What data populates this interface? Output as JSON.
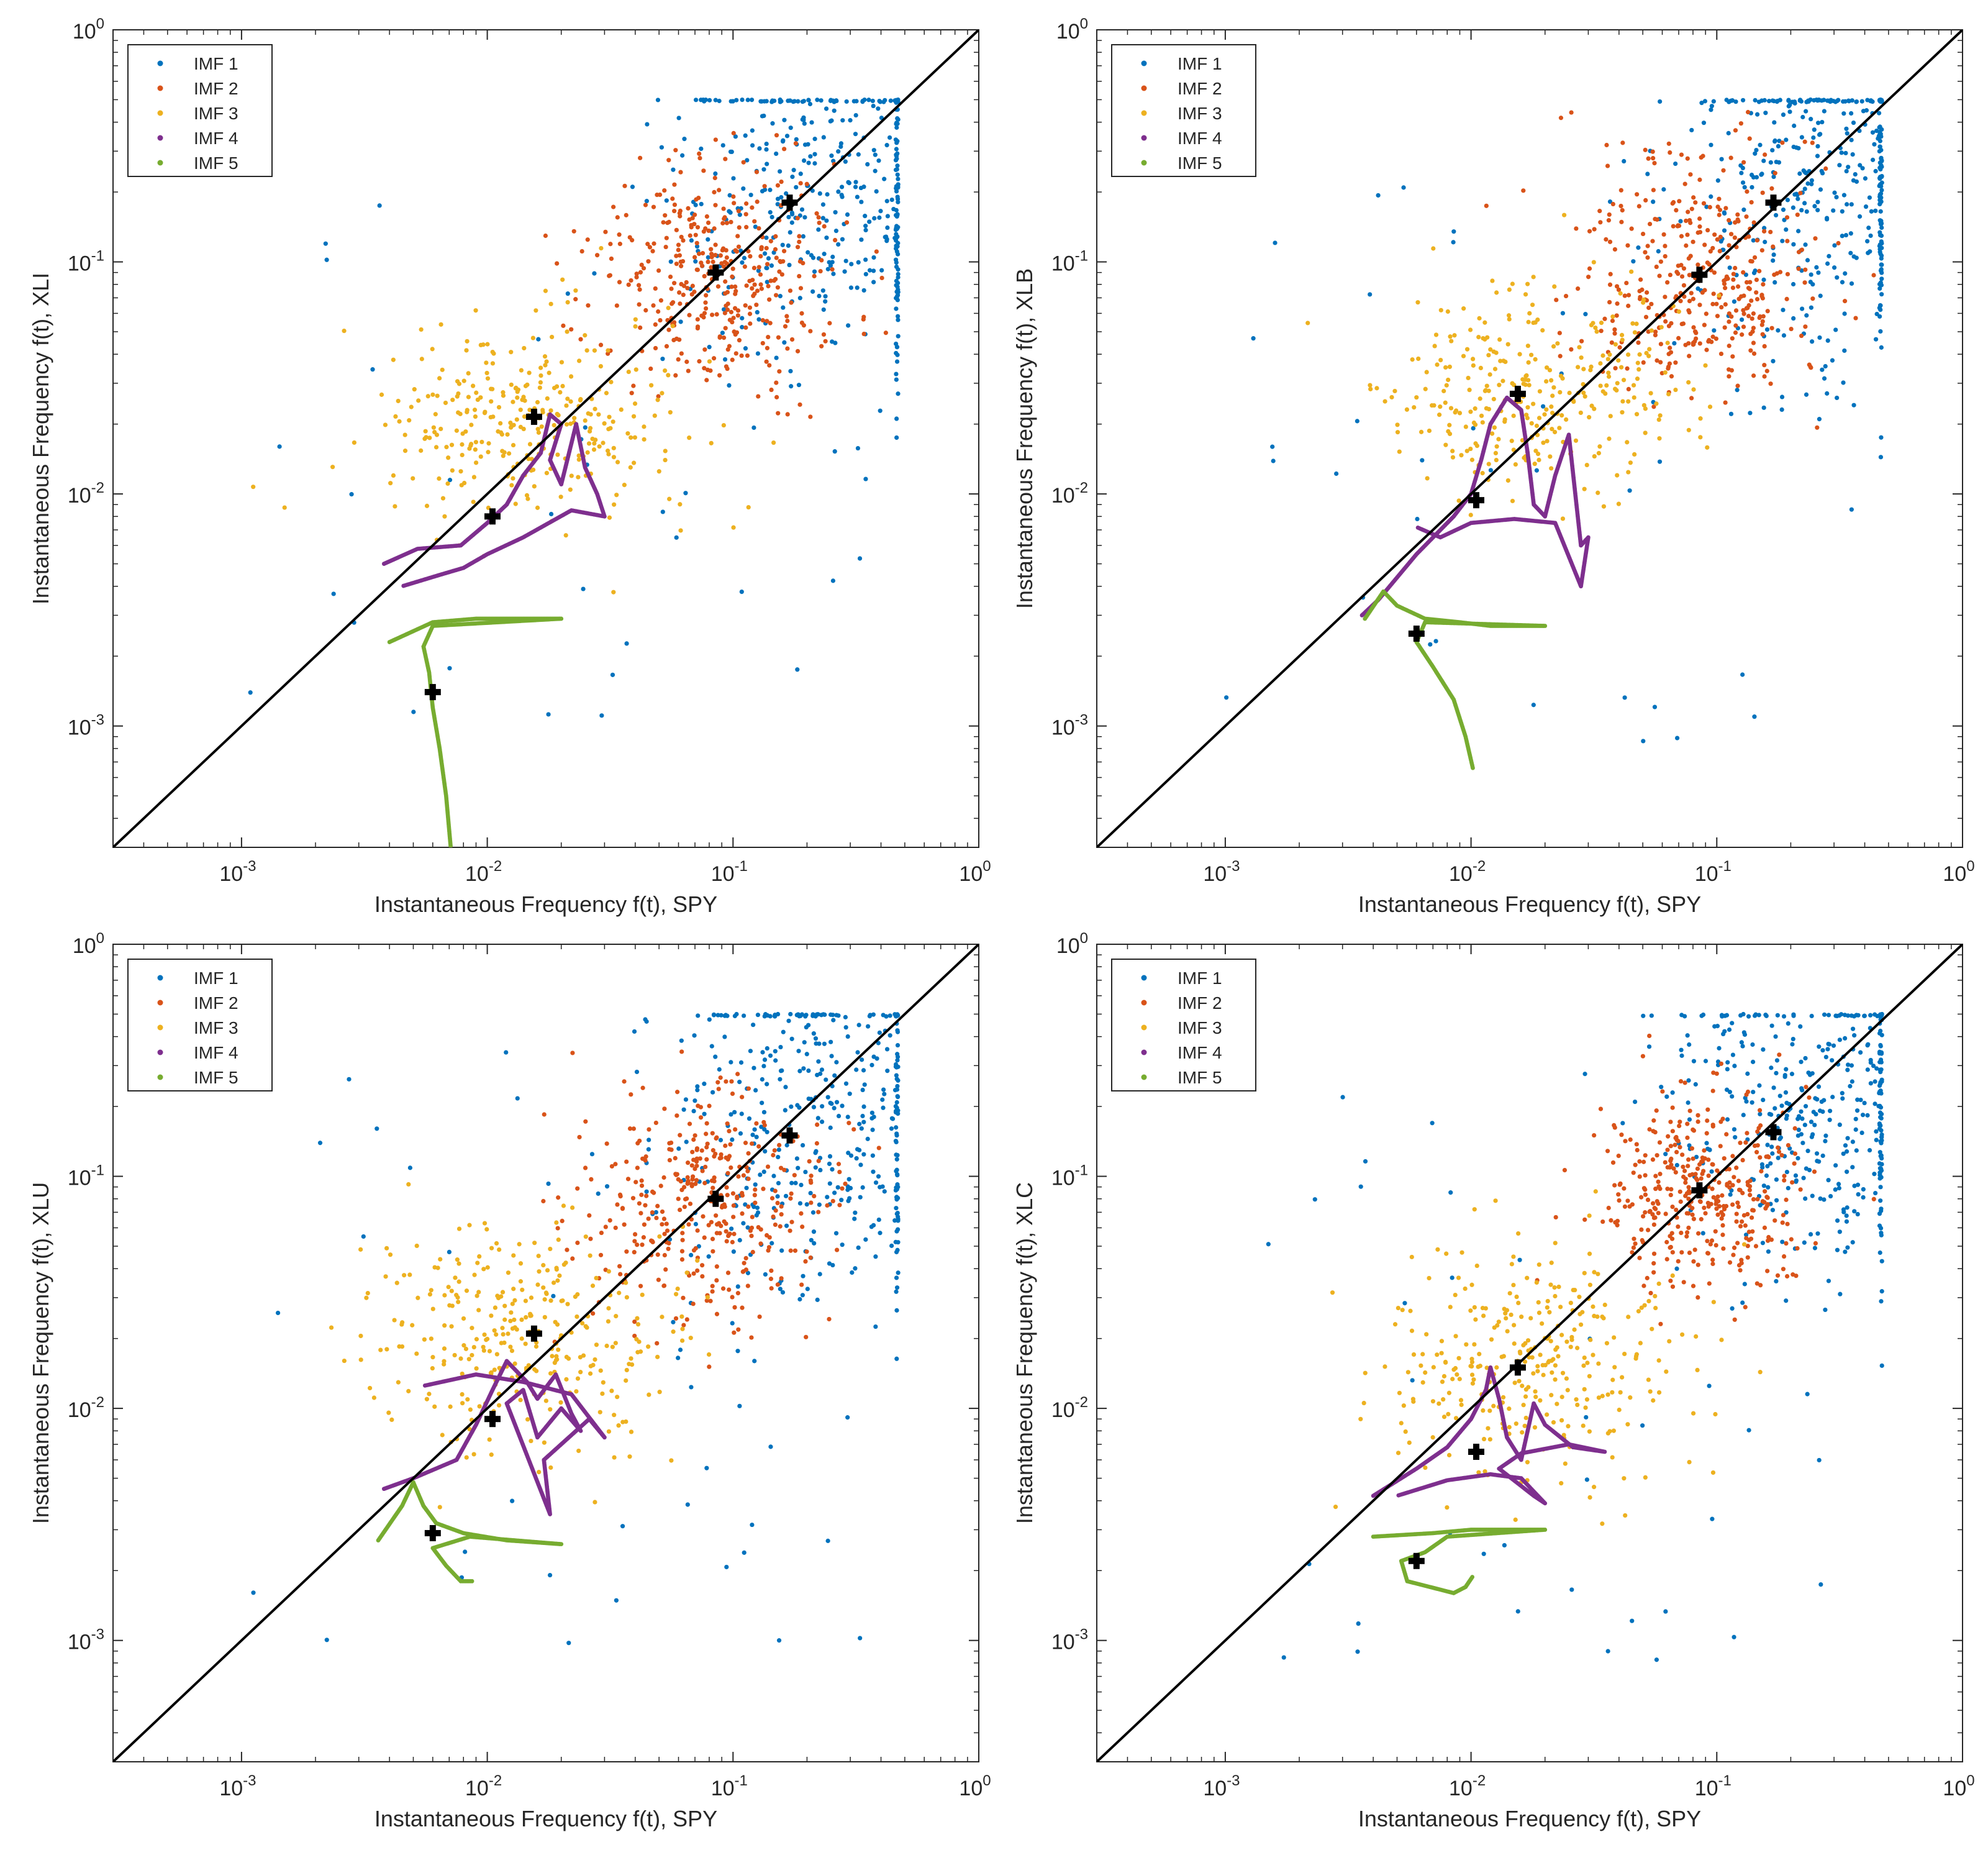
{
  "figure": {
    "legend_labels": [
      "IMF 1",
      "IMF 2",
      "IMF 3",
      "IMF 4",
      "IMF 5"
    ],
    "colors": {
      "IMF 1": "#0072BD",
      "IMF 2": "#D95319",
      "IMF 3": "#EDB120",
      "IMF 4": "#7E2F8E",
      "IMF 5": "#77AC30",
      "reference_line": "#000000",
      "centroid_marker": "#000000"
    }
  },
  "chart_data": [
    {
      "id": "xli",
      "type": "scatter",
      "scale": "log-log",
      "xlabel": "Instantaneous Frequency f(t), SPY",
      "ylabel": "Instantaneous Frequency f(t), XLI",
      "xlim": [
        0.0003,
        1
      ],
      "ylim": [
        0.0003,
        1
      ],
      "ticks": [
        {
          "value": 0.001,
          "base": "10",
          "exp": "-3"
        },
        {
          "value": 0.01,
          "base": "10",
          "exp": "-2"
        },
        {
          "value": 0.1,
          "base": "10",
          "exp": "-1"
        },
        {
          "value": 1,
          "base": "10",
          "exp": "0"
        }
      ],
      "reference_line": "y = x",
      "legend_position": "top-left",
      "series": [
        {
          "name": "IMF 1",
          "center": [
            0.25,
            0.2
          ],
          "spread": [
            0.35,
            0.4
          ],
          "points": 420,
          "style": "scatter"
        },
        {
          "name": "IMF 2",
          "center": [
            0.085,
            0.085
          ],
          "spread": [
            0.25,
            0.25
          ],
          "points": 380,
          "style": "scatter"
        },
        {
          "name": "IMF 3",
          "center": [
            0.015,
            0.02
          ],
          "spread": [
            0.3,
            0.22
          ],
          "points": 320,
          "style": "scatter"
        },
        {
          "name": "IMF 4",
          "center": [
            0.01,
            0.009
          ],
          "spread": [
            0.18,
            0.2
          ],
          "points": 0,
          "style": "trajectory",
          "path": [
            [
              0.0038,
              0.005
            ],
            [
              0.0052,
              0.0058
            ],
            [
              0.0078,
              0.006
            ],
            [
              0.01,
              0.0075
            ],
            [
              0.012,
              0.009
            ],
            [
              0.014,
              0.012
            ],
            [
              0.0165,
              0.015
            ],
            [
              0.018,
              0.022
            ],
            [
              0.02,
              0.02
            ],
            [
              0.018,
              0.014
            ],
            [
              0.02,
              0.011
            ],
            [
              0.023,
              0.02
            ],
            [
              0.025,
              0.013
            ],
            [
              0.028,
              0.01
            ],
            [
              0.03,
              0.008
            ],
            [
              0.022,
              0.0085
            ],
            [
              0.014,
              0.0065
            ],
            [
              0.01,
              0.0055
            ],
            [
              0.008,
              0.0048
            ],
            [
              0.0065,
              0.0045
            ],
            [
              0.0045,
              0.004
            ]
          ]
        },
        {
          "name": "IMF 5",
          "center": [
            0.006,
            0.0014
          ],
          "spread": [
            0.1,
            0.15
          ],
          "points": 0,
          "style": "trajectory",
          "path": [
            [
              0.004,
              0.0023
            ],
            [
              0.006,
              0.0028
            ],
            [
              0.009,
              0.0029
            ],
            [
              0.014,
              0.0029
            ],
            [
              0.02,
              0.0029
            ],
            [
              0.006,
              0.0027
            ],
            [
              0.0055,
              0.0022
            ],
            [
              0.0058,
              0.0017
            ],
            [
              0.006,
              0.0012
            ],
            [
              0.0064,
              0.0008
            ],
            [
              0.0068,
              0.0005
            ],
            [
              0.0071,
              0.0003
            ]
          ]
        }
      ],
      "centroids": [
        [
          0.17,
          0.18
        ],
        [
          0.085,
          0.09
        ],
        [
          0.0155,
          0.0215
        ],
        [
          0.0105,
          0.008
        ],
        [
          0.006,
          0.0014
        ]
      ]
    },
    {
      "id": "xlb",
      "type": "scatter",
      "scale": "log-log",
      "xlabel": "Instantaneous Frequency f(t), SPY",
      "ylabel": "Instantaneous Frequency f(t), XLB",
      "xlim": [
        0.0003,
        1
      ],
      "ylim": [
        0.0003,
        1
      ],
      "ticks": [
        {
          "value": 0.001,
          "base": "10",
          "exp": "-3"
        },
        {
          "value": 0.01,
          "base": "10",
          "exp": "-2"
        },
        {
          "value": 0.1,
          "base": "10",
          "exp": "-1"
        },
        {
          "value": 1,
          "base": "10",
          "exp": "0"
        }
      ],
      "reference_line": "y = x",
      "legend_position": "top-left",
      "series": [
        {
          "name": "IMF 1",
          "center": [
            0.27,
            0.2
          ],
          "spread": [
            0.32,
            0.42
          ],
          "points": 420,
          "style": "scatter"
        },
        {
          "name": "IMF 2",
          "center": [
            0.085,
            0.085
          ],
          "spread": [
            0.25,
            0.27
          ],
          "points": 380,
          "style": "scatter"
        },
        {
          "name": "IMF 3",
          "center": [
            0.018,
            0.028
          ],
          "spread": [
            0.32,
            0.22
          ],
          "points": 320,
          "style": "scatter"
        },
        {
          "name": "IMF 4",
          "center": [
            0.011,
            0.01
          ],
          "spread": [
            0.18,
            0.2
          ],
          "points": 0,
          "style": "trajectory",
          "path": [
            [
              0.0036,
              0.003
            ],
            [
              0.0042,
              0.0035
            ],
            [
              0.006,
              0.0055
            ],
            [
              0.0085,
              0.008
            ],
            [
              0.01,
              0.01
            ],
            [
              0.011,
              0.014
            ],
            [
              0.012,
              0.02
            ],
            [
              0.014,
              0.026
            ],
            [
              0.016,
              0.023
            ],
            [
              0.017,
              0.015
            ],
            [
              0.018,
              0.009
            ],
            [
              0.02,
              0.008
            ],
            [
              0.022,
              0.012
            ],
            [
              0.025,
              0.018
            ],
            [
              0.028,
              0.006
            ],
            [
              0.03,
              0.0065
            ],
            [
              0.028,
              0.004
            ],
            [
              0.022,
              0.0075
            ],
            [
              0.015,
              0.0078
            ],
            [
              0.01,
              0.0075
            ],
            [
              0.0075,
              0.0065
            ],
            [
              0.006,
              0.0072
            ]
          ]
        },
        {
          "name": "IMF 5",
          "center": [
            0.006,
            0.0025
          ],
          "spread": [
            0.1,
            0.15
          ],
          "points": 0,
          "style": "trajectory",
          "path": [
            [
              0.0037,
              0.0029
            ],
            [
              0.0044,
              0.0038
            ],
            [
              0.005,
              0.0033
            ],
            [
              0.0065,
              0.0029
            ],
            [
              0.009,
              0.0028
            ],
            [
              0.012,
              0.0027
            ],
            [
              0.02,
              0.0027
            ],
            [
              0.0065,
              0.0028
            ],
            [
              0.006,
              0.0023
            ],
            [
              0.007,
              0.0018
            ],
            [
              0.0085,
              0.0013
            ],
            [
              0.0095,
              0.0009
            ],
            [
              0.0102,
              0.00065
            ]
          ]
        }
      ],
      "centroids": [
        [
          0.17,
          0.18
        ],
        [
          0.085,
          0.088
        ],
        [
          0.0155,
          0.027
        ],
        [
          0.0105,
          0.0094
        ],
        [
          0.006,
          0.0025
        ]
      ]
    },
    {
      "id": "xlu",
      "type": "scatter",
      "scale": "log-log",
      "xlabel": "Instantaneous Frequency f(t), SPY",
      "ylabel": "Instantaneous Frequency f(t), XLU",
      "xlim": [
        0.0003,
        1
      ],
      "ylim": [
        0.0003,
        1
      ],
      "ticks": [
        {
          "value": 0.001,
          "base": "10",
          "exp": "-3"
        },
        {
          "value": 0.01,
          "base": "10",
          "exp": "-2"
        },
        {
          "value": 0.1,
          "base": "10",
          "exp": "-1"
        },
        {
          "value": 1,
          "base": "10",
          "exp": "0"
        }
      ],
      "reference_line": "y = x",
      "legend_position": "top-left",
      "series": [
        {
          "name": "IMF 1",
          "center": [
            0.22,
            0.18
          ],
          "spread": [
            0.35,
            0.42
          ],
          "points": 420,
          "style": "scatter"
        },
        {
          "name": "IMF 2",
          "center": [
            0.08,
            0.075
          ],
          "spread": [
            0.25,
            0.25
          ],
          "points": 380,
          "style": "scatter"
        },
        {
          "name": "IMF 3",
          "center": [
            0.014,
            0.02
          ],
          "spread": [
            0.32,
            0.24
          ],
          "points": 320,
          "style": "scatter"
        },
        {
          "name": "IMF 4",
          "center": [
            0.012,
            0.011
          ],
          "spread": [
            0.18,
            0.18
          ],
          "points": 0,
          "style": "trajectory",
          "path": [
            [
              0.0038,
              0.0045
            ],
            [
              0.005,
              0.005
            ],
            [
              0.0075,
              0.006
            ],
            [
              0.009,
              0.0085
            ],
            [
              0.0105,
              0.012
            ],
            [
              0.012,
              0.016
            ],
            [
              0.0145,
              0.013
            ],
            [
              0.016,
              0.011
            ],
            [
              0.019,
              0.014
            ],
            [
              0.022,
              0.0095
            ],
            [
              0.024,
              0.008
            ],
            [
              0.02,
              0.01
            ],
            [
              0.016,
              0.0075
            ],
            [
              0.014,
              0.012
            ],
            [
              0.012,
              0.0105
            ],
            [
              0.018,
              0.0035
            ],
            [
              0.017,
              0.006
            ],
            [
              0.026,
              0.009
            ],
            [
              0.03,
              0.0075
            ],
            [
              0.022,
              0.0115
            ],
            [
              0.014,
              0.013
            ],
            [
              0.009,
              0.014
            ],
            [
              0.0055,
              0.0125
            ]
          ]
        },
        {
          "name": "IMF 5",
          "center": [
            0.006,
            0.0029
          ],
          "spread": [
            0.1,
            0.15
          ],
          "points": 0,
          "style": "trajectory",
          "path": [
            [
              0.0036,
              0.0027
            ],
            [
              0.0045,
              0.0038
            ],
            [
              0.005,
              0.0048
            ],
            [
              0.0055,
              0.0038
            ],
            [
              0.0062,
              0.0032
            ],
            [
              0.008,
              0.0029
            ],
            [
              0.012,
              0.0027
            ],
            [
              0.02,
              0.0026
            ],
            [
              0.0085,
              0.0028
            ],
            [
              0.006,
              0.0025
            ],
            [
              0.0068,
              0.0021
            ],
            [
              0.0078,
              0.0018
            ],
            [
              0.0088,
              0.0018
            ]
          ]
        }
      ],
      "centroids": [
        [
          0.17,
          0.15
        ],
        [
          0.085,
          0.08
        ],
        [
          0.0155,
          0.021
        ],
        [
          0.0105,
          0.009
        ],
        [
          0.006,
          0.0029
        ]
      ]
    },
    {
      "id": "xlc",
      "type": "scatter",
      "scale": "log-log",
      "xlabel": "Instantaneous Frequency f(t), SPY",
      "ylabel": "Instantaneous Frequency f(t), XLC",
      "xlim": [
        0.0003,
        1
      ],
      "ylim": [
        0.0003,
        1
      ],
      "ticks": [
        {
          "value": 0.001,
          "base": "10",
          "exp": "-3"
        },
        {
          "value": 0.01,
          "base": "10",
          "exp": "-2"
        },
        {
          "value": 0.1,
          "base": "10",
          "exp": "-1"
        },
        {
          "value": 1,
          "base": "10",
          "exp": "0"
        }
      ],
      "reference_line": "y = x",
      "legend_position": "top-left",
      "series": [
        {
          "name": "IMF 1",
          "center": [
            0.25,
            0.2
          ],
          "spread": [
            0.32,
            0.36
          ],
          "points": 400,
          "style": "scatter"
        },
        {
          "name": "IMF 2",
          "center": [
            0.085,
            0.085
          ],
          "spread": [
            0.22,
            0.22
          ],
          "points": 380,
          "style": "scatter"
        },
        {
          "name": "IMF 3",
          "center": [
            0.018,
            0.016
          ],
          "spread": [
            0.3,
            0.25
          ],
          "points": 320,
          "style": "scatter"
        },
        {
          "name": "IMF 4",
          "center": [
            0.011,
            0.008
          ],
          "spread": [
            0.16,
            0.18
          ],
          "points": 0,
          "style": "trajectory",
          "path": [
            [
              0.004,
              0.0042
            ],
            [
              0.006,
              0.0055
            ],
            [
              0.008,
              0.0068
            ],
            [
              0.01,
              0.009
            ],
            [
              0.0115,
              0.012
            ],
            [
              0.012,
              0.015
            ],
            [
              0.013,
              0.011
            ],
            [
              0.014,
              0.0075
            ],
            [
              0.016,
              0.006
            ],
            [
              0.018,
              0.0105
            ],
            [
              0.02,
              0.0085
            ],
            [
              0.026,
              0.0068
            ],
            [
              0.035,
              0.0065
            ],
            [
              0.025,
              0.007
            ],
            [
              0.016,
              0.0064
            ],
            [
              0.013,
              0.0055
            ],
            [
              0.018,
              0.0042
            ],
            [
              0.02,
              0.0039
            ],
            [
              0.016,
              0.005
            ],
            [
              0.012,
              0.0052
            ],
            [
              0.008,
              0.0049
            ],
            [
              0.005,
              0.0042
            ]
          ]
        },
        {
          "name": "IMF 5",
          "center": [
            0.006,
            0.0022
          ],
          "spread": [
            0.1,
            0.15
          ],
          "points": 0,
          "style": "trajectory",
          "path": [
            [
              0.004,
              0.0028
            ],
            [
              0.007,
              0.0029
            ],
            [
              0.01,
              0.003
            ],
            [
              0.014,
              0.003
            ],
            [
              0.02,
              0.003
            ],
            [
              0.008,
              0.0028
            ],
            [
              0.0065,
              0.0024
            ],
            [
              0.0052,
              0.0022
            ],
            [
              0.0055,
              0.0018
            ],
            [
              0.0068,
              0.0017
            ],
            [
              0.0085,
              0.0016
            ],
            [
              0.0095,
              0.0017
            ],
            [
              0.0102,
              0.0019
            ]
          ]
        }
      ],
      "centroids": [
        [
          0.17,
          0.155
        ],
        [
          0.085,
          0.087
        ],
        [
          0.0155,
          0.015
        ],
        [
          0.0105,
          0.0065
        ],
        [
          0.006,
          0.0022
        ]
      ]
    }
  ]
}
